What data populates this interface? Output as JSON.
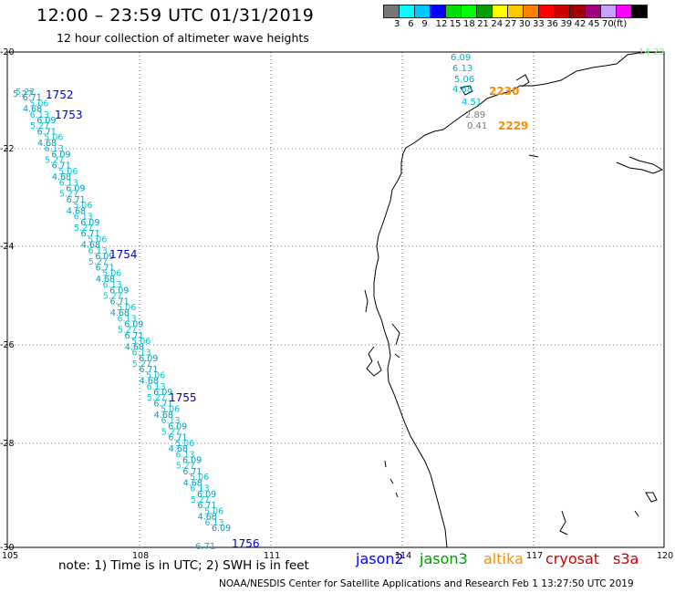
{
  "header": {
    "title": "12:00 – 23:59 UTC 01/31/2019",
    "subtitle": "12 hour collection of altimeter wave heights"
  },
  "scale": {
    "unit": "(ft)",
    "colors": [
      "#777777",
      "#00ffff",
      "#00c8ff",
      "#0000ff",
      "#00dd00",
      "#00ff00",
      "#00a000",
      "#ffff00",
      "#ffc800",
      "#ff8000",
      "#ff0000",
      "#c80000",
      "#a00000",
      "#a00080",
      "#c8a0ff",
      "#ff00ff",
      "#000000"
    ],
    "labels": [
      "3",
      "6",
      "9",
      "12",
      "15",
      "18",
      "21",
      "24",
      "27",
      "30",
      "33",
      "36",
      "39",
      "42",
      "45",
      "70"
    ]
  },
  "axes": {
    "lat_labels": [
      "-20",
      "-22",
      "-24",
      "-26",
      "-28",
      "-30"
    ],
    "lon_labels": [
      "105",
      "108",
      "111",
      "114",
      "117",
      "120"
    ]
  },
  "track_labels": [
    {
      "text": "1752",
      "color": "#0000cc"
    },
    {
      "text": "1753",
      "color": "#0000cc"
    },
    {
      "text": "1754",
      "color": "#0000cc"
    },
    {
      "text": "1755",
      "color": "#0000cc"
    },
    {
      "text": "1756",
      "color": "#0000cc"
    },
    {
      "text": "2230",
      "color": "#ff8c00"
    },
    {
      "text": "2229",
      "color": "#ff8c00"
    }
  ],
  "wave_values": [
    {
      "text": "6.09",
      "color": "#00b4c8"
    },
    {
      "text": "6.13",
      "color": "#00b4c8"
    },
    {
      "text": "5.06",
      "color": "#00b4c8"
    },
    {
      "text": "4.68",
      "color": "#00b4c8"
    },
    {
      "text": "4.51",
      "color": "#00b4c8"
    },
    {
      "text": "2.89",
      "color": "#777777"
    },
    {
      "text": "0.41",
      "color": "#777777"
    },
    {
      "text": "14.23",
      "color": "#66ff66"
    },
    {
      "text": "5.27",
      "color": "#00b4c8"
    },
    {
      "text": "6.71",
      "color": "#00b4c8"
    }
  ],
  "footer": {
    "note": "note: 1) Time is in UTC; 2) SWH is in feet",
    "satellites": [
      {
        "name": "jason2",
        "color": "#0000ff"
      },
      {
        "name": "jason3",
        "color": "#009900"
      },
      {
        "name": "altika",
        "color": "#ff8c00"
      },
      {
        "name": "cryosat",
        "color": "#cc0000"
      },
      {
        "name": "s3a",
        "color": "#cc0000"
      }
    ],
    "credit": "NOAA/NESDIS Center for Satellite Applications and Research     Feb  1 13:27:50 UTC 2019"
  }
}
